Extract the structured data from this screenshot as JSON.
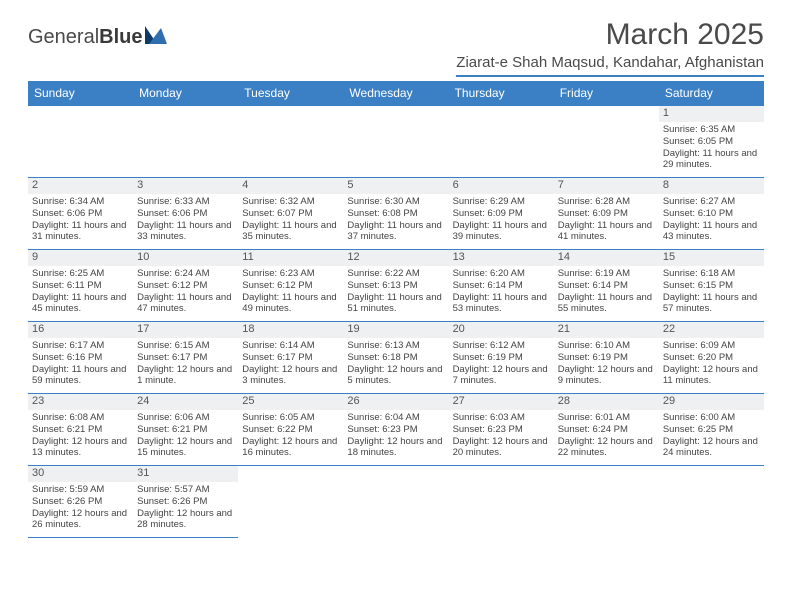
{
  "brand": {
    "text1": "General",
    "text2": "Blue",
    "icon_color": "#2f6fb0",
    "icon_dark": "#0f3a66"
  },
  "header": {
    "month_title": "March 2025",
    "location": "Ziarat-e Shah Maqsud, Kandahar, Afghanistan"
  },
  "colors": {
    "header_bg": "#3b7fc4",
    "header_text": "#ffffff",
    "rule": "#3b7fc4",
    "daynum_bg": "#eef0f2",
    "body_text": "#444444"
  },
  "weekdays": [
    "Sunday",
    "Monday",
    "Tuesday",
    "Wednesday",
    "Thursday",
    "Friday",
    "Saturday"
  ],
  "weeks": [
    [
      {
        "n": "",
        "sr": "",
        "ss": "",
        "dl": ""
      },
      {
        "n": "",
        "sr": "",
        "ss": "",
        "dl": ""
      },
      {
        "n": "",
        "sr": "",
        "ss": "",
        "dl": ""
      },
      {
        "n": "",
        "sr": "",
        "ss": "",
        "dl": ""
      },
      {
        "n": "",
        "sr": "",
        "ss": "",
        "dl": ""
      },
      {
        "n": "",
        "sr": "",
        "ss": "",
        "dl": ""
      },
      {
        "n": "1",
        "sr": "Sunrise: 6:35 AM",
        "ss": "Sunset: 6:05 PM",
        "dl": "Daylight: 11 hours and 29 minutes."
      }
    ],
    [
      {
        "n": "2",
        "sr": "Sunrise: 6:34 AM",
        "ss": "Sunset: 6:06 PM",
        "dl": "Daylight: 11 hours and 31 minutes."
      },
      {
        "n": "3",
        "sr": "Sunrise: 6:33 AM",
        "ss": "Sunset: 6:06 PM",
        "dl": "Daylight: 11 hours and 33 minutes."
      },
      {
        "n": "4",
        "sr": "Sunrise: 6:32 AM",
        "ss": "Sunset: 6:07 PM",
        "dl": "Daylight: 11 hours and 35 minutes."
      },
      {
        "n": "5",
        "sr": "Sunrise: 6:30 AM",
        "ss": "Sunset: 6:08 PM",
        "dl": "Daylight: 11 hours and 37 minutes."
      },
      {
        "n": "6",
        "sr": "Sunrise: 6:29 AM",
        "ss": "Sunset: 6:09 PM",
        "dl": "Daylight: 11 hours and 39 minutes."
      },
      {
        "n": "7",
        "sr": "Sunrise: 6:28 AM",
        "ss": "Sunset: 6:09 PM",
        "dl": "Daylight: 11 hours and 41 minutes."
      },
      {
        "n": "8",
        "sr": "Sunrise: 6:27 AM",
        "ss": "Sunset: 6:10 PM",
        "dl": "Daylight: 11 hours and 43 minutes."
      }
    ],
    [
      {
        "n": "9",
        "sr": "Sunrise: 6:25 AM",
        "ss": "Sunset: 6:11 PM",
        "dl": "Daylight: 11 hours and 45 minutes."
      },
      {
        "n": "10",
        "sr": "Sunrise: 6:24 AM",
        "ss": "Sunset: 6:12 PM",
        "dl": "Daylight: 11 hours and 47 minutes."
      },
      {
        "n": "11",
        "sr": "Sunrise: 6:23 AM",
        "ss": "Sunset: 6:12 PM",
        "dl": "Daylight: 11 hours and 49 minutes."
      },
      {
        "n": "12",
        "sr": "Sunrise: 6:22 AM",
        "ss": "Sunset: 6:13 PM",
        "dl": "Daylight: 11 hours and 51 minutes."
      },
      {
        "n": "13",
        "sr": "Sunrise: 6:20 AM",
        "ss": "Sunset: 6:14 PM",
        "dl": "Daylight: 11 hours and 53 minutes."
      },
      {
        "n": "14",
        "sr": "Sunrise: 6:19 AM",
        "ss": "Sunset: 6:14 PM",
        "dl": "Daylight: 11 hours and 55 minutes."
      },
      {
        "n": "15",
        "sr": "Sunrise: 6:18 AM",
        "ss": "Sunset: 6:15 PM",
        "dl": "Daylight: 11 hours and 57 minutes."
      }
    ],
    [
      {
        "n": "16",
        "sr": "Sunrise: 6:17 AM",
        "ss": "Sunset: 6:16 PM",
        "dl": "Daylight: 11 hours and 59 minutes."
      },
      {
        "n": "17",
        "sr": "Sunrise: 6:15 AM",
        "ss": "Sunset: 6:17 PM",
        "dl": "Daylight: 12 hours and 1 minute."
      },
      {
        "n": "18",
        "sr": "Sunrise: 6:14 AM",
        "ss": "Sunset: 6:17 PM",
        "dl": "Daylight: 12 hours and 3 minutes."
      },
      {
        "n": "19",
        "sr": "Sunrise: 6:13 AM",
        "ss": "Sunset: 6:18 PM",
        "dl": "Daylight: 12 hours and 5 minutes."
      },
      {
        "n": "20",
        "sr": "Sunrise: 6:12 AM",
        "ss": "Sunset: 6:19 PM",
        "dl": "Daylight: 12 hours and 7 minutes."
      },
      {
        "n": "21",
        "sr": "Sunrise: 6:10 AM",
        "ss": "Sunset: 6:19 PM",
        "dl": "Daylight: 12 hours and 9 minutes."
      },
      {
        "n": "22",
        "sr": "Sunrise: 6:09 AM",
        "ss": "Sunset: 6:20 PM",
        "dl": "Daylight: 12 hours and 11 minutes."
      }
    ],
    [
      {
        "n": "23",
        "sr": "Sunrise: 6:08 AM",
        "ss": "Sunset: 6:21 PM",
        "dl": "Daylight: 12 hours and 13 minutes."
      },
      {
        "n": "24",
        "sr": "Sunrise: 6:06 AM",
        "ss": "Sunset: 6:21 PM",
        "dl": "Daylight: 12 hours and 15 minutes."
      },
      {
        "n": "25",
        "sr": "Sunrise: 6:05 AM",
        "ss": "Sunset: 6:22 PM",
        "dl": "Daylight: 12 hours and 16 minutes."
      },
      {
        "n": "26",
        "sr": "Sunrise: 6:04 AM",
        "ss": "Sunset: 6:23 PM",
        "dl": "Daylight: 12 hours and 18 minutes."
      },
      {
        "n": "27",
        "sr": "Sunrise: 6:03 AM",
        "ss": "Sunset: 6:23 PM",
        "dl": "Daylight: 12 hours and 20 minutes."
      },
      {
        "n": "28",
        "sr": "Sunrise: 6:01 AM",
        "ss": "Sunset: 6:24 PM",
        "dl": "Daylight: 12 hours and 22 minutes."
      },
      {
        "n": "29",
        "sr": "Sunrise: 6:00 AM",
        "ss": "Sunset: 6:25 PM",
        "dl": "Daylight: 12 hours and 24 minutes."
      }
    ],
    [
      {
        "n": "30",
        "sr": "Sunrise: 5:59 AM",
        "ss": "Sunset: 6:26 PM",
        "dl": "Daylight: 12 hours and 26 minutes."
      },
      {
        "n": "31",
        "sr": "Sunrise: 5:57 AM",
        "ss": "Sunset: 6:26 PM",
        "dl": "Daylight: 12 hours and 28 minutes."
      },
      {
        "n": "",
        "sr": "",
        "ss": "",
        "dl": ""
      },
      {
        "n": "",
        "sr": "",
        "ss": "",
        "dl": ""
      },
      {
        "n": "",
        "sr": "",
        "ss": "",
        "dl": ""
      },
      {
        "n": "",
        "sr": "",
        "ss": "",
        "dl": ""
      },
      {
        "n": "",
        "sr": "",
        "ss": "",
        "dl": ""
      }
    ]
  ]
}
